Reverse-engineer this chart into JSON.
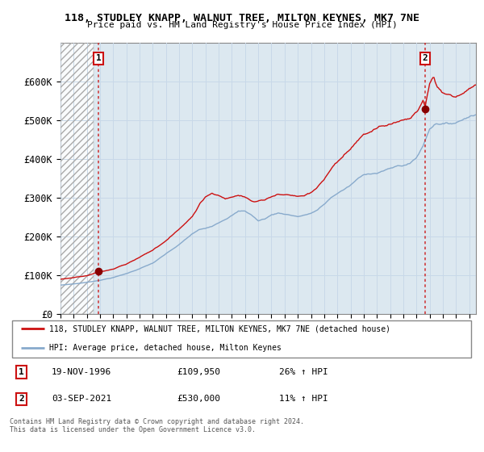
{
  "title": "118, STUDLEY KNAPP, WALNUT TREE, MILTON KEYNES, MK7 7NE",
  "subtitle": "Price paid vs. HM Land Registry's House Price Index (HPI)",
  "legend_line1": "118, STUDLEY KNAPP, WALNUT TREE, MILTON KEYNES, MK7 7NE (detached house)",
  "legend_line2": "HPI: Average price, detached house, Milton Keynes",
  "annotation1_date": "19-NOV-1996",
  "annotation1_price": "£109,950",
  "annotation1_hpi": "26% ↑ HPI",
  "annotation2_date": "03-SEP-2021",
  "annotation2_price": "£530,000",
  "annotation2_hpi": "11% ↑ HPI",
  "footer": "Contains HM Land Registry data © Crown copyright and database right 2024.\nThis data is licensed under the Open Government Licence v3.0.",
  "grid_color": "#c8d8e8",
  "price_line_color": "#cc1111",
  "hpi_line_color": "#88aacc",
  "background_plot": "#dce8f0",
  "ylim": [
    0,
    700000
  ],
  "yticks": [
    0,
    100000,
    200000,
    300000,
    400000,
    500000,
    600000
  ],
  "ytick_labels": [
    "£0",
    "£100K",
    "£200K",
    "£300K",
    "£400K",
    "£500K",
    "£600K"
  ],
  "sale1_x": 1996.88,
  "sale1_y": 109950,
  "sale2_x": 2021.67,
  "sale2_y": 530000,
  "xmin": 1994.0,
  "xmax": 2025.5,
  "hatch_end": 1996.5
}
